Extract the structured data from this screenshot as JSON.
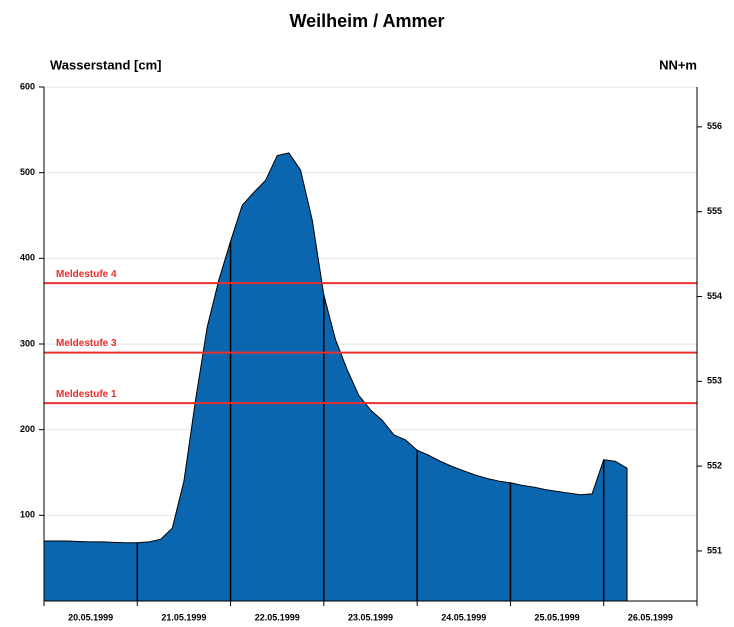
{
  "chart_data": {
    "type": "area",
    "title": "Weilheim / Ammer",
    "y_label": "Wasserstand [cm]",
    "y2_label": "NN+m",
    "categories": [
      null,
      null,
      null,
      null,
      "20.05.1999",
      null,
      null,
      null,
      null,
      null,
      null,
      null,
      "21.05.1999",
      null,
      null,
      null,
      null,
      null,
      null,
      null,
      "22.05.1999",
      null,
      null,
      null,
      null,
      null,
      null,
      null,
      "23.05.1999",
      null,
      null,
      null,
      null,
      null,
      null,
      null,
      "24.05.1999",
      null,
      null,
      null,
      null,
      null,
      null,
      null,
      "25.05.1999",
      null,
      null,
      null,
      null,
      null,
      null,
      null,
      "26.05.1999",
      null,
      null,
      null
    ],
    "values": [
      70,
      70,
      70,
      69.5,
      69,
      69,
      68.5,
      68,
      68,
      69,
      72,
      85,
      140,
      235,
      320,
      375,
      420,
      462,
      477,
      491,
      520,
      523,
      503,
      445,
      357,
      305,
      270,
      240,
      223,
      211,
      194,
      188,
      176,
      170,
      163,
      157,
      152,
      147,
      143,
      140,
      138,
      135,
      133,
      130,
      128,
      126,
      124,
      125,
      165,
      163,
      155,
      null,
      null,
      null,
      null,
      null
    ],
    "color": "#0b66b0",
    "ylim": [
      0,
      600
    ],
    "yticks": [
      100,
      200,
      300,
      400,
      500,
      600
    ],
    "y2lim": [
      550.41,
      556.47
    ],
    "y2ticks": [
      551,
      552,
      553,
      554,
      555,
      556
    ],
    "grid": true,
    "thresholds": [
      {
        "name": "Meldestufe 4",
        "value": 371,
        "color": "#e8302c"
      },
      {
        "name": "Meldestufe 3",
        "value": 290,
        "color": "#e8302c"
      },
      {
        "name": "Meldestufe 1",
        "value": 231,
        "color": "#e8302c"
      }
    ]
  }
}
